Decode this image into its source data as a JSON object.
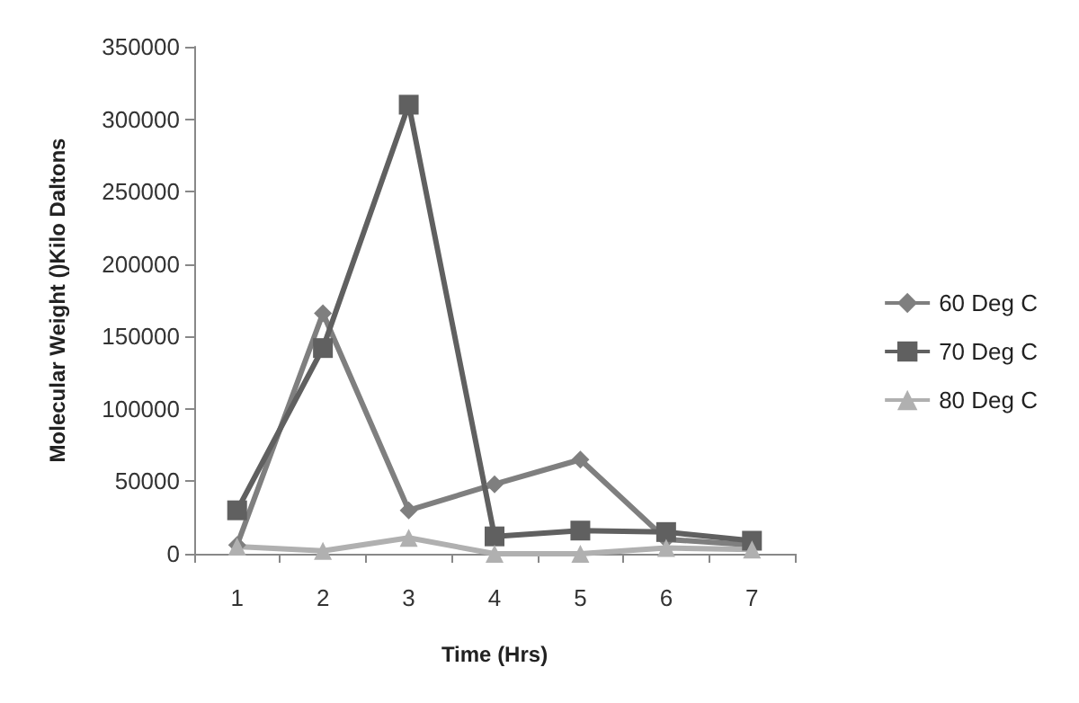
{
  "chart_data": {
    "type": "line",
    "xlabel": "Time (Hrs)",
    "ylabel": "Molecular Weight ()Kilo Daltons",
    "categories": [
      "1",
      "2",
      "3",
      "4",
      "5",
      "6",
      "7"
    ],
    "series": [
      {
        "name": "60 Deg C",
        "color": "#7f7f7f",
        "marker": "diamond",
        "values": [
          6000,
          166000,
          30000,
          48000,
          65000,
          10000,
          6000
        ]
      },
      {
        "name": "70 Deg C",
        "color": "#606060",
        "marker": "square",
        "values": [
          30000,
          142000,
          310000,
          12000,
          16000,
          15000,
          9000
        ]
      },
      {
        "name": "80 Deg C",
        "color": "#b0b0b0",
        "marker": "triangle",
        "values": [
          5000,
          2000,
          11000,
          0,
          0,
          4000,
          3000
        ]
      }
    ],
    "ylim": [
      0,
      350000
    ],
    "yticks": [
      0,
      50000,
      100000,
      150000,
      200000,
      250000,
      300000,
      350000
    ],
    "grid": false,
    "legend": "right",
    "line_style": "solid"
  }
}
